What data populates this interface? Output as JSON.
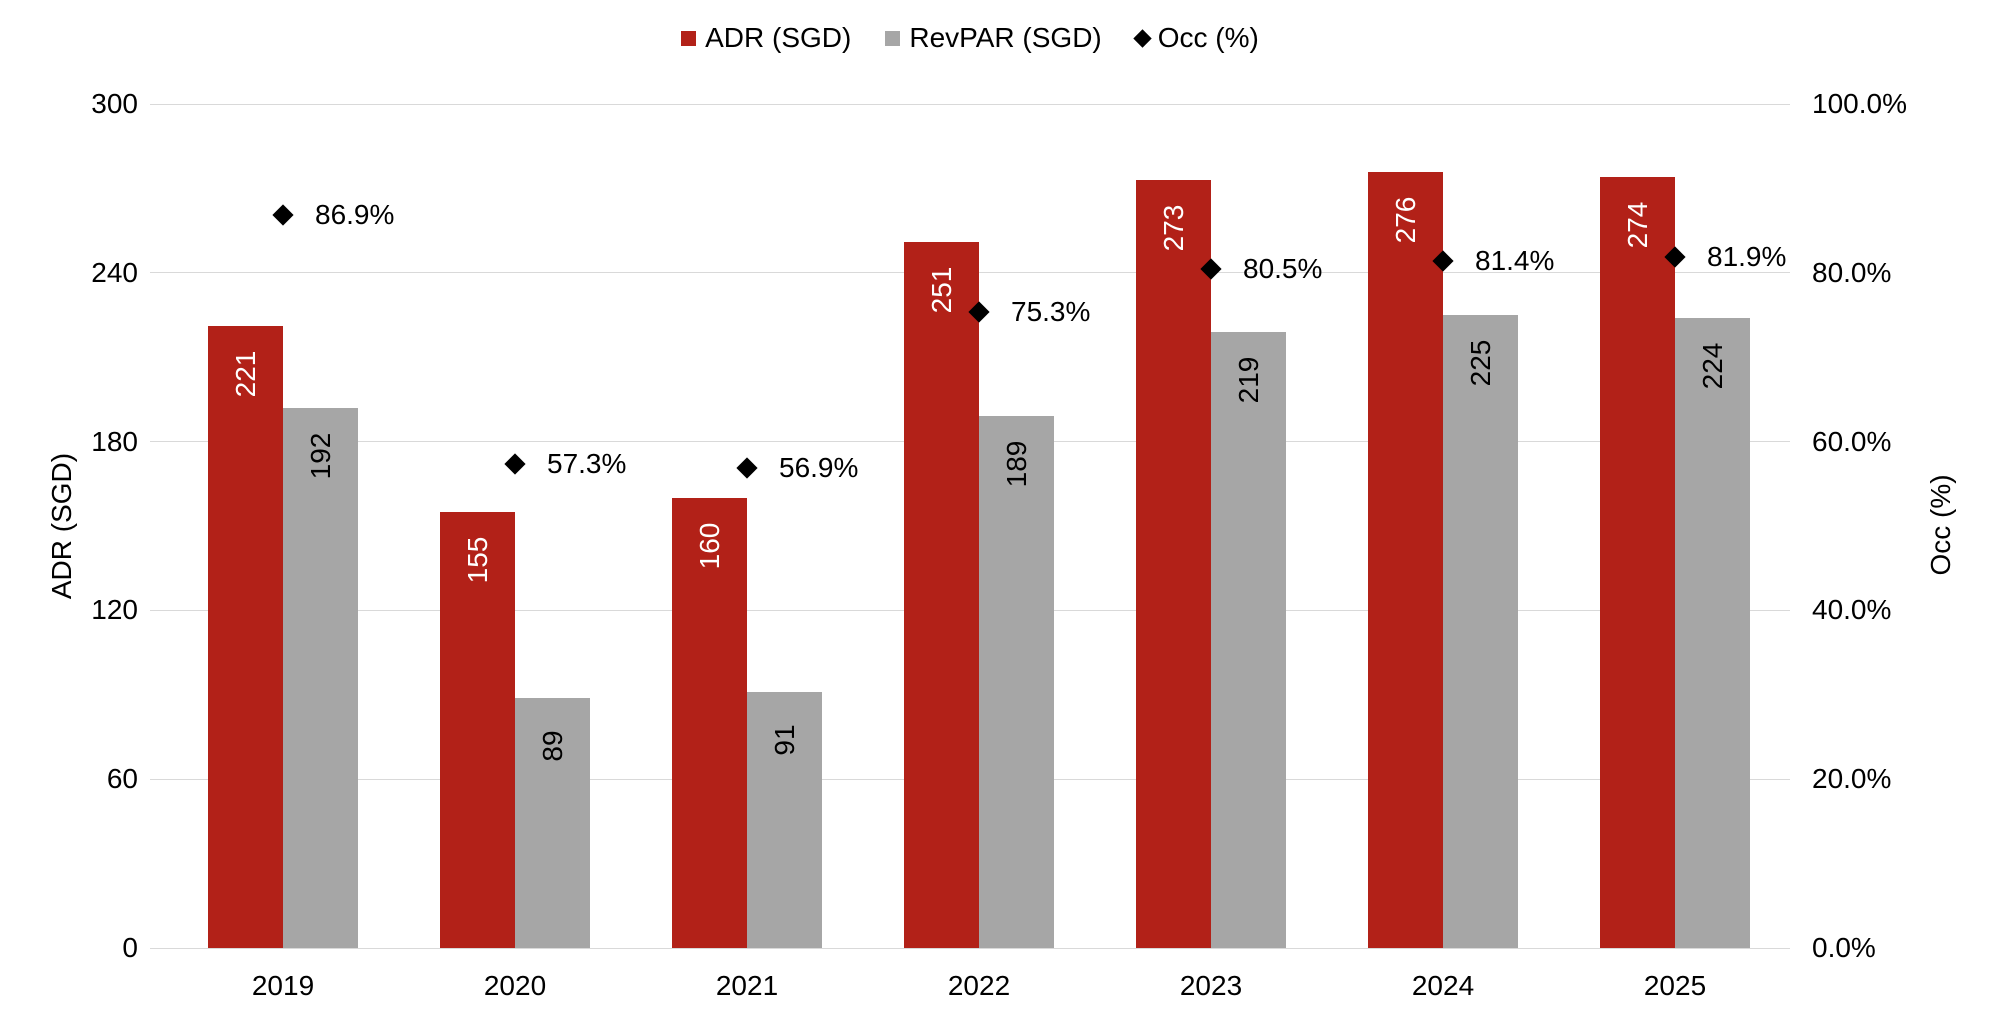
{
  "chart_data": {
    "type": "bar",
    "subtype": "clustered-columns-with-scatter-overlay",
    "title": "",
    "categories": [
      "2019",
      "2020",
      "2021",
      "2022",
      "2023",
      "2024",
      "2025"
    ],
    "series": [
      {
        "name": "ADR (SGD)",
        "kind": "bar",
        "axis": "left",
        "color": "#B22118",
        "label_color": "#FFFFFF",
        "values": [
          221,
          155,
          160,
          251,
          273,
          276,
          274
        ],
        "labels": [
          "221",
          "155",
          "160",
          "251",
          "273",
          "276",
          "274"
        ]
      },
      {
        "name": "RevPAR (SGD)",
        "kind": "bar",
        "axis": "left",
        "color": "#A6A6A6",
        "label_color": "#000000",
        "values": [
          192,
          89,
          91,
          189,
          219,
          225,
          224
        ],
        "labels": [
          "192",
          "89",
          "91",
          "189",
          "219",
          "225",
          "224"
        ]
      },
      {
        "name": "Occ (%)",
        "kind": "scatter",
        "marker": "diamond",
        "axis": "right",
        "color": "#000000",
        "label_color": "#000000",
        "values": [
          86.9,
          57.3,
          56.9,
          75.3,
          80.5,
          81.4,
          81.9
        ],
        "labels": [
          "86.9%",
          "57.3%",
          "56.9%",
          "75.3%",
          "80.5%",
          "81.4%",
          "81.9%"
        ]
      }
    ],
    "left_axis": {
      "title": "ADR (SGD)",
      "min": 0,
      "max": 300,
      "ticks": [
        "300",
        "240",
        "180",
        "120",
        "60",
        "0"
      ],
      "tick_values": [
        300,
        240,
        180,
        120,
        60,
        0
      ]
    },
    "right_axis": {
      "title": "Occ (%)",
      "min": 0,
      "max": 100,
      "ticks": [
        "100.0%",
        "80.0%",
        "60.0%",
        "40.0%",
        "20.0%",
        "0.0%"
      ],
      "tick_values": [
        100,
        80,
        60,
        40,
        20,
        0
      ]
    },
    "grid": true,
    "gridline_color": "#D9D9D9",
    "legend_position": "top-center",
    "background_color": "#FFFFFF"
  }
}
